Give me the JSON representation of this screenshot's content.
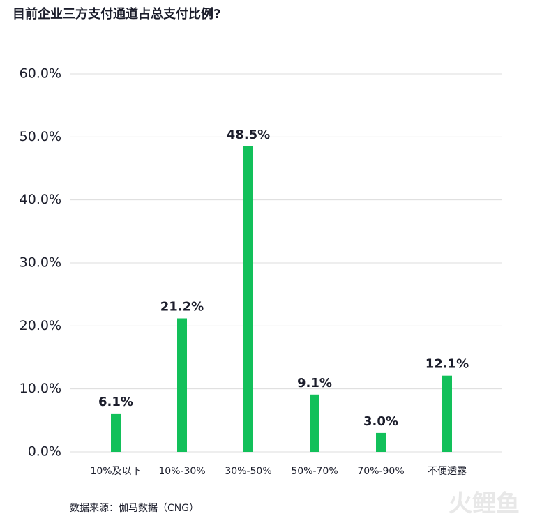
{
  "chart_data": {
    "type": "bar",
    "title": "目前企业三方支付通道占总支付比例?",
    "categories": [
      "10%及以下",
      "10%-30%",
      "30%-50%",
      "50%-70%",
      "70%-90%",
      "不便透露"
    ],
    "values": [
      6.1,
      21.2,
      48.5,
      9.1,
      3.0,
      12.1
    ],
    "value_labels": [
      "6.1%",
      "21.2%",
      "48.5%",
      "9.1%",
      "3.0%",
      "12.1%"
    ],
    "color": "#12c05a",
    "ylim": [
      0,
      60
    ],
    "yticks": [
      {
        "value": 0,
        "label": "0.0%"
      },
      {
        "value": 10,
        "label": "10.0%"
      },
      {
        "value": 20,
        "label": "20.0%"
      },
      {
        "value": 30,
        "label": "30.0%"
      },
      {
        "value": 40,
        "label": "40.0%"
      },
      {
        "value": 50,
        "label": "50.0%"
      },
      {
        "value": 60,
        "label": "60.0%"
      }
    ],
    "grid": true,
    "source": "数据来源：伽马数据（CNG）",
    "watermark": "火鲤鱼"
  }
}
